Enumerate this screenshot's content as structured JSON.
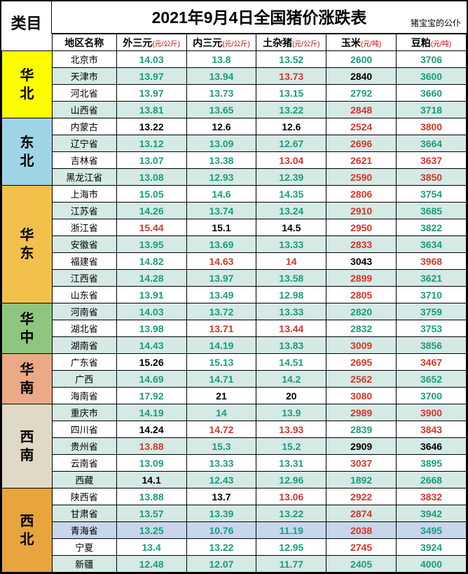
{
  "title": "2021年9月4日全国猪价涨跌表",
  "subtitle": "猪宝宝的公仆",
  "category_header": "类目",
  "columns": [
    {
      "label": "地区名称",
      "unit": ""
    },
    {
      "label": "外三元",
      "unit": "(元/公斤)"
    },
    {
      "label": "内三元",
      "unit": "(元/公斤)"
    },
    {
      "label": "土杂猪",
      "unit": "(元/公斤)"
    },
    {
      "label": "玉米",
      "unit": "(元/吨)"
    },
    {
      "label": "豆粕",
      "unit": "(元/吨)"
    }
  ],
  "groups": [
    {
      "name": "华北",
      "bg": "#fdfd00",
      "rows": [
        {
          "region": "北京市",
          "bg": "#ffffff",
          "v": [
            [
              "14.03",
              "up"
            ],
            [
              "13.8",
              "up"
            ],
            [
              "13.52",
              "up"
            ],
            [
              "2600",
              "up"
            ],
            [
              "3706",
              "up"
            ]
          ]
        },
        {
          "region": "天津市",
          "bg": "#d5e9e5",
          "v": [
            [
              "13.97",
              "up"
            ],
            [
              "13.94",
              "up"
            ],
            [
              "13.73",
              "down"
            ],
            [
              "2840",
              "flat"
            ],
            [
              "3600",
              "up"
            ]
          ]
        },
        {
          "region": "河北省",
          "bg": "#ffffff",
          "v": [
            [
              "13.97",
              "up"
            ],
            [
              "13.73",
              "up"
            ],
            [
              "13.15",
              "up"
            ],
            [
              "2792",
              "up"
            ],
            [
              "3660",
              "up"
            ]
          ]
        },
        {
          "region": "山西省",
          "bg": "#d5e9e5",
          "v": [
            [
              "13.81",
              "up"
            ],
            [
              "13.65",
              "up"
            ],
            [
              "13.22",
              "up"
            ],
            [
              "2848",
              "down"
            ],
            [
              "3718",
              "up"
            ]
          ]
        }
      ]
    },
    {
      "name": "东北",
      "bg": "#9fd4e6",
      "rows": [
        {
          "region": "内蒙古",
          "bg": "#ffffff",
          "v": [
            [
              "13.22",
              "flat"
            ],
            [
              "12.6",
              "flat"
            ],
            [
              "12.6",
              "flat"
            ],
            [
              "2524",
              "down"
            ],
            [
              "3800",
              "down"
            ]
          ]
        },
        {
          "region": "辽宁省",
          "bg": "#d5e9e5",
          "v": [
            [
              "13.12",
              "up"
            ],
            [
              "13.09",
              "up"
            ],
            [
              "12.67",
              "up"
            ],
            [
              "2696",
              "down"
            ],
            [
              "3664",
              "up"
            ]
          ]
        },
        {
          "region": "吉林省",
          "bg": "#ffffff",
          "v": [
            [
              "13.07",
              "up"
            ],
            [
              "13.38",
              "up"
            ],
            [
              "13.04",
              "down"
            ],
            [
              "2621",
              "down"
            ],
            [
              "3637",
              "down"
            ]
          ]
        },
        {
          "region": "黑龙江省",
          "bg": "#d5e9e5",
          "v": [
            [
              "13.08",
              "up"
            ],
            [
              "12.93",
              "up"
            ],
            [
              "12.39",
              "up"
            ],
            [
              "2590",
              "down"
            ],
            [
              "3850",
              "down"
            ]
          ]
        }
      ]
    },
    {
      "name": "华东",
      "bg": "#f3c14b",
      "rows": [
        {
          "region": "上海市",
          "bg": "#ffffff",
          "v": [
            [
              "15.05",
              "up"
            ],
            [
              "14.6",
              "up"
            ],
            [
              "14.35",
              "up"
            ],
            [
              "2806",
              "down"
            ],
            [
              "3754",
              "up"
            ]
          ]
        },
        {
          "region": "江苏省",
          "bg": "#d5e9e5",
          "v": [
            [
              "14.26",
              "up"
            ],
            [
              "13.74",
              "up"
            ],
            [
              "13.24",
              "up"
            ],
            [
              "2910",
              "down"
            ],
            [
              "3685",
              "up"
            ]
          ]
        },
        {
          "region": "浙江省",
          "bg": "#ffffff",
          "v": [
            [
              "15.44",
              "down"
            ],
            [
              "15.1",
              "flat"
            ],
            [
              "14.5",
              "flat"
            ],
            [
              "2950",
              "down"
            ],
            [
              "3822",
              "up"
            ]
          ]
        },
        {
          "region": "安徽省",
          "bg": "#d5e9e5",
          "v": [
            [
              "13.95",
              "up"
            ],
            [
              "13.69",
              "up"
            ],
            [
              "13.33",
              "up"
            ],
            [
              "2833",
              "down"
            ],
            [
              "3634",
              "up"
            ]
          ]
        },
        {
          "region": "福建省",
          "bg": "#ffffff",
          "v": [
            [
              "14.82",
              "up"
            ],
            [
              "14.63",
              "down"
            ],
            [
              "14",
              "down"
            ],
            [
              "3043",
              "flat"
            ],
            [
              "3968",
              "down"
            ]
          ]
        },
        {
          "region": "江西省",
          "bg": "#d5e9e5",
          "v": [
            [
              "14.28",
              "up"
            ],
            [
              "13.97",
              "up"
            ],
            [
              "13.58",
              "up"
            ],
            [
              "2899",
              "down"
            ],
            [
              "3621",
              "up"
            ]
          ]
        },
        {
          "region": "山东省",
          "bg": "#ffffff",
          "v": [
            [
              "13.91",
              "up"
            ],
            [
              "13.49",
              "up"
            ],
            [
              "12.98",
              "up"
            ],
            [
              "2805",
              "down"
            ],
            [
              "3710",
              "up"
            ]
          ]
        }
      ]
    },
    {
      "name": "华中",
      "bg": "#8fc67f",
      "rows": [
        {
          "region": "河南省",
          "bg": "#d5e9e5",
          "v": [
            [
              "14.03",
              "up"
            ],
            [
              "13.72",
              "up"
            ],
            [
              "13.33",
              "up"
            ],
            [
              "2820",
              "up"
            ],
            [
              "3759",
              "up"
            ]
          ]
        },
        {
          "region": "湖北省",
          "bg": "#ffffff",
          "v": [
            [
              "13.98",
              "up"
            ],
            [
              "13.71",
              "down"
            ],
            [
              "13.44",
              "down"
            ],
            [
              "2832",
              "up"
            ],
            [
              "3753",
              "up"
            ]
          ]
        },
        {
          "region": "湖南省",
          "bg": "#d5e9e5",
          "v": [
            [
              "14.43",
              "up"
            ],
            [
              "14.19",
              "up"
            ],
            [
              "13.83",
              "up"
            ],
            [
              "3009",
              "down"
            ],
            [
              "3856",
              "up"
            ]
          ]
        }
      ]
    },
    {
      "name": "华南",
      "bg": "#eba986",
      "rows": [
        {
          "region": "广东省",
          "bg": "#ffffff",
          "v": [
            [
              "15.26",
              "flat"
            ],
            [
              "15.13",
              "up"
            ],
            [
              "14.51",
              "up"
            ],
            [
              "2695",
              "down"
            ],
            [
              "3467",
              "down"
            ]
          ]
        },
        {
          "region": "广西",
          "bg": "#d5e9e5",
          "v": [
            [
              "14.69",
              "up"
            ],
            [
              "14.71",
              "up"
            ],
            [
              "14.2",
              "up"
            ],
            [
              "2562",
              "down"
            ],
            [
              "3652",
              "up"
            ]
          ]
        },
        {
          "region": "海南省",
          "bg": "#ffffff",
          "v": [
            [
              "17.92",
              "up"
            ],
            [
              "21",
              "flat"
            ],
            [
              "20",
              "flat"
            ],
            [
              "3080",
              "down"
            ],
            [
              "3700",
              "up"
            ]
          ]
        }
      ]
    },
    {
      "name": "西南",
      "bg": "#e1d9c7",
      "rows": [
        {
          "region": "重庆市",
          "bg": "#d5e9e5",
          "v": [
            [
              "14.19",
              "up"
            ],
            [
              "14",
              "up"
            ],
            [
              "13.9",
              "up"
            ],
            [
              "2989",
              "down"
            ],
            [
              "3900",
              "down"
            ]
          ]
        },
        {
          "region": "四川省",
          "bg": "#ffffff",
          "v": [
            [
              "14.24",
              "flat"
            ],
            [
              "14.72",
              "down"
            ],
            [
              "13.93",
              "down"
            ],
            [
              "2839",
              "up"
            ],
            [
              "3843",
              "down"
            ]
          ]
        },
        {
          "region": "贵州省",
          "bg": "#d5e9e5",
          "v": [
            [
              "13.88",
              "down"
            ],
            [
              "15.3",
              "up"
            ],
            [
              "15.2",
              "up"
            ],
            [
              "2909",
              "flat"
            ],
            [
              "3646",
              "flat"
            ]
          ]
        },
        {
          "region": "云南省",
          "bg": "#ffffff",
          "v": [
            [
              "13.09",
              "up"
            ],
            [
              "13.33",
              "up"
            ],
            [
              "13.31",
              "up"
            ],
            [
              "3037",
              "down"
            ],
            [
              "3895",
              "up"
            ]
          ]
        },
        {
          "region": "西藏",
          "bg": "#d5e9e5",
          "v": [
            [
              "14.1",
              "flat"
            ],
            [
              "12.43",
              "up"
            ],
            [
              "12.96",
              "up"
            ],
            [
              "1892",
              "up"
            ],
            [
              "2668",
              "up"
            ]
          ]
        }
      ]
    },
    {
      "name": "西北",
      "bg": "#e8a43d",
      "rows": [
        {
          "region": "陕西省",
          "bg": "#ffffff",
          "v": [
            [
              "13.88",
              "up"
            ],
            [
              "13.7",
              "flat"
            ],
            [
              "13.06",
              "down"
            ],
            [
              "2922",
              "down"
            ],
            [
              "3832",
              "down"
            ]
          ]
        },
        {
          "region": "甘肃省",
          "bg": "#d5e9e5",
          "v": [
            [
              "13.57",
              "up"
            ],
            [
              "13.39",
              "up"
            ],
            [
              "13.22",
              "up"
            ],
            [
              "2874",
              "down"
            ],
            [
              "3942",
              "up"
            ]
          ]
        },
        {
          "region": "青海省",
          "bg": "#c8d6ea",
          "v": [
            [
              "13.25",
              "up"
            ],
            [
              "10.76",
              "up"
            ],
            [
              "11.19",
              "up"
            ],
            [
              "2038",
              "down"
            ],
            [
              "3495",
              "up"
            ]
          ]
        },
        {
          "region": "宁夏",
          "bg": "#ffffff",
          "v": [
            [
              "13.4",
              "up"
            ],
            [
              "13.22",
              "up"
            ],
            [
              "12.95",
              "up"
            ],
            [
              "2745",
              "down"
            ],
            [
              "3924",
              "up"
            ]
          ]
        },
        {
          "region": "新疆",
          "bg": "#d5e9e5",
          "v": [
            [
              "12.48",
              "up"
            ],
            [
              "12.07",
              "up"
            ],
            [
              "11.77",
              "up"
            ],
            [
              "2405",
              "up"
            ],
            [
              "4000",
              "up"
            ]
          ]
        }
      ]
    }
  ]
}
